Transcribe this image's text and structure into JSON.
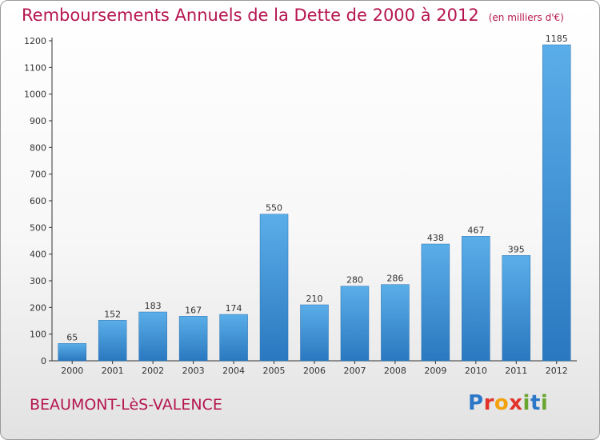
{
  "chart_data": {
    "type": "bar",
    "title": "Remboursements Annuels de la Dette de 2000 à 2012",
    "subtitle": "(en milliers d'€)",
    "xlabel": "",
    "ylabel": "",
    "categories": [
      "2000",
      "2001",
      "2002",
      "2003",
      "2004",
      "2005",
      "2006",
      "2007",
      "2008",
      "2009",
      "2010",
      "2011",
      "2012"
    ],
    "values": [
      65,
      152,
      183,
      167,
      174,
      550,
      210,
      280,
      286,
      438,
      467,
      395,
      1185
    ],
    "ylim": [
      0,
      1200
    ],
    "yticks": [
      0,
      100,
      200,
      300,
      400,
      500,
      600,
      700,
      800,
      900,
      1000,
      1100,
      1200
    ],
    "grid": false,
    "bar_color": "#3f93d6"
  },
  "footer": {
    "location": "BEAUMONT-LèS-VALENCE",
    "logo_text": "Proxiti",
    "logo_colors": [
      "#2b77c8",
      "#e2332a",
      "#f2a20c",
      "#6aa62f"
    ]
  }
}
